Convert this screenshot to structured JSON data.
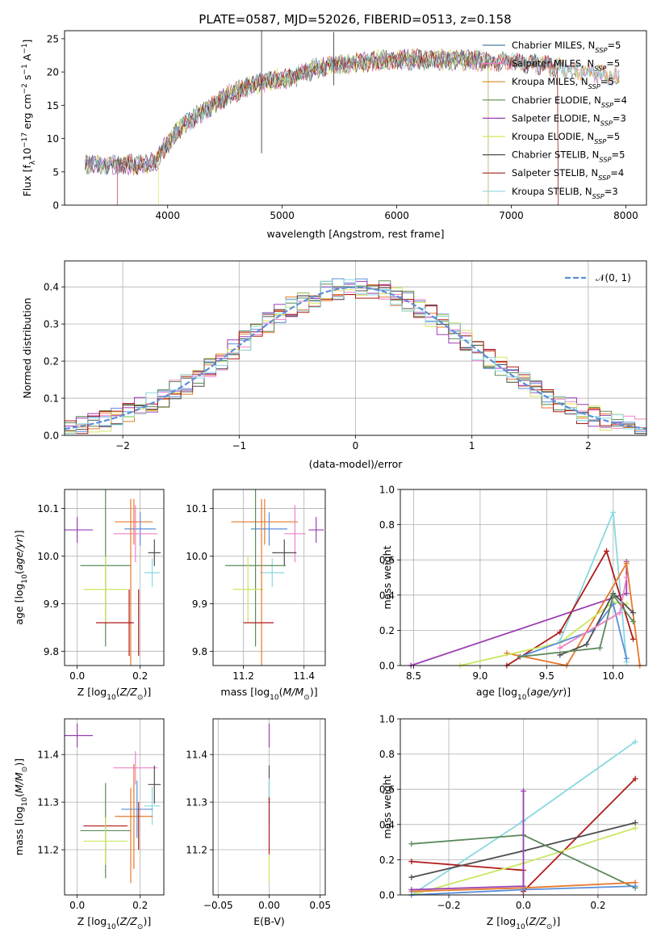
{
  "title": "PLATE=0587, MJD=52026, FIBERID=0513, z=0.158",
  "colors": {
    "Chabrier MILES": "#4a7fa0",
    "Salpeter MILES": "#f37ac4",
    "Kroupa MILES": "#d88a1b",
    "Chabrier ELODIE": "#5c8a52",
    "Salpeter ELODIE": "#9b3fb3",
    "Kroupa ELODIE": "#d8e35b",
    "Chabrier STELIB": "#4f4f4f",
    "Salpeter STELIB": "#a51d1d",
    "Kroupa STELIB": "#8fd8de",
    "blue": "#5b8fd8",
    "orange": "#e8782a",
    "green": "#5c8a5c",
    "purple": "#9b3fb3",
    "pink": "#f080c8",
    "yellowgreen": "#c8e860",
    "grey": "#4f4f4f",
    "red": "#b01a1a",
    "cyan": "#88d8e0"
  },
  "chart_data": [
    {
      "type": "line",
      "title": "PLATE=0587, MJD=52026, FIBERID=0513, z=0.158",
      "xlabel": "wavelength [Angstrom, rest frame]",
      "ylabel": "Flux [f_λ 10^-17 erg cm^-2 s^-1 A^-1]",
      "xlim": [
        3100,
        8180
      ],
      "ylim": [
        0,
        26.2
      ],
      "xticks": [
        "4000",
        "5000",
        "6000",
        "7000",
        "8000"
      ],
      "yticks": [
        "0",
        "5",
        "10",
        "15",
        "20",
        "25"
      ],
      "legend_position": "right",
      "legend": [
        {
          "name": "Chabrier MILES",
          "nssp": "5"
        },
        {
          "name": "Salpeter MILES",
          "nssp": "5"
        },
        {
          "name": "Kroupa MILES",
          "nssp": "5"
        },
        {
          "name": "Chabrier ELODIE",
          "nssp": "4"
        },
        {
          "name": "Salpeter ELODIE",
          "nssp": "3"
        },
        {
          "name": "Kroupa ELODIE",
          "nssp": "5"
        },
        {
          "name": "Chabrier STELIB",
          "nssp": "5"
        },
        {
          "name": "Salpeter STELIB",
          "nssp": "4"
        },
        {
          "name": "Kroupa STELIB",
          "nssp": "3"
        }
      ],
      "continuum_knots": [
        [
          3280,
          6.2
        ],
        [
          3500,
          6.0
        ],
        [
          3700,
          6.1
        ],
        [
          3900,
          6.4
        ],
        [
          3940,
          7.8
        ],
        [
          4100,
          11.5
        ],
        [
          4300,
          14.0
        ],
        [
          4500,
          16.2
        ],
        [
          4700,
          17.8
        ],
        [
          4900,
          18.8
        ],
        [
          5100,
          19.2
        ],
        [
          5300,
          20.6
        ],
        [
          5500,
          21.2
        ],
        [
          5800,
          21.6
        ],
        [
          6000,
          21.9
        ],
        [
          6300,
          21.8
        ],
        [
          6600,
          21.8
        ],
        [
          7000,
          21.6
        ],
        [
          7300,
          21.0
        ],
        [
          7600,
          20.2
        ],
        [
          7950,
          19.0
        ]
      ],
      "features": [
        {
          "x": 3560,
          "y0": 0,
          "note": "Salpeter STELIB lower cutoff"
        },
        {
          "x": 3920,
          "y0": 0,
          "note": "Kroupa ELODIE lower cutoff"
        },
        {
          "x": 4820,
          "y0": 8,
          "y1": 26,
          "note": "spike"
        },
        {
          "x": 6800,
          "y0": 0,
          "note": "ELODIE upper cutoff"
        },
        {
          "x": 7410,
          "y0": 0,
          "note": "STELIB upper cutoff"
        }
      ]
    },
    {
      "type": "line",
      "xlabel": "(data-model)/error",
      "ylabel": "Normed distribution",
      "xlim": [
        -2.5,
        2.5
      ],
      "ylim": [
        0,
        0.47
      ],
      "xticks": [
        "−2",
        "−1",
        "0",
        "1",
        "2"
      ],
      "yticks": [
        "0.0",
        "0.1",
        "0.2",
        "0.3",
        "0.4"
      ],
      "legend_position": "top-right",
      "legend": "𝒩(0, 1)",
      "series": [
        {
          "name": "𝒩(0, 1)",
          "style": "dashed",
          "function": "gaussian(0,1)"
        }
      ],
      "histograms": "step histograms of residuals for 9 model fits, bin width 0.1, following the gaussian"
    },
    {
      "type": "scatter",
      "xlabel": "Z [log10(Z/Z⊙)]",
      "ylabel": "age  [log10(age/yr)]",
      "xlim": [
        -0.04,
        0.275
      ],
      "ylim": [
        9.77,
        10.14
      ],
      "xticks": [
        "0.0",
        "0.2"
      ],
      "yticks": [
        "9.8",
        "9.9",
        "10.0",
        "10.1"
      ],
      "points": [
        {
          "c": "purple",
          "x": 0.0,
          "xe": 0.05,
          "y": 10.055,
          "ye": 0.027
        },
        {
          "c": "orange",
          "x": 0.18,
          "xe": 0.06,
          "y": 10.072,
          "ye": 0.048
        },
        {
          "c": "blue",
          "x": 0.2,
          "xe": 0.05,
          "y": 10.057,
          "ye": 0.035
        },
        {
          "c": "pink",
          "x": 0.185,
          "xe": 0.07,
          "y": 10.047,
          "ye": 0.06
        },
        {
          "c": "grey",
          "x": 0.245,
          "xe": 0.02,
          "y": 10.007,
          "ye": 0.028
        },
        {
          "c": "cyan",
          "x": 0.238,
          "xe": 0.025,
          "y": 9.965,
          "ye": 0.03
        },
        {
          "c": "green",
          "x": 0.09,
          "xe": 0.08,
          "y": 9.98,
          "ye": 0.17
        },
        {
          "c": "yellowgreen",
          "x": 0.09,
          "xe": 0.07,
          "y": 9.93,
          "ye": 0.07
        },
        {
          "c": "orange",
          "x": 0.17,
          "xe": 0.0,
          "y": 9.85,
          "ye": 0.27
        },
        {
          "c": "red",
          "x": 0.165,
          "xe": 0.0,
          "y": 9.86,
          "ye": 0.07
        },
        {
          "c": "red",
          "x": 0.12,
          "xe": 0.06,
          "y": 9.86,
          "ye": 0.0
        },
        {
          "c": "red",
          "x": 0.195,
          "xe": 0.0,
          "y": 9.86,
          "ye": 0.07
        }
      ]
    },
    {
      "type": "scatter",
      "xlabel": "mass [log10(M/M⊙)]",
      "ylabel": "",
      "xlim": [
        11.1,
        11.47
      ],
      "ylim": [
        9.77,
        10.14
      ],
      "xticks": [
        "11.2",
        "11.4"
      ],
      "yticks": [
        "9.8",
        "9.9",
        "10.0",
        "10.1"
      ],
      "points": [
        {
          "c": "purple",
          "x": 11.44,
          "xe": 0.025,
          "y": 10.055,
          "ye": 0.027
        },
        {
          "c": "orange",
          "x": 11.27,
          "xe": 0.11,
          "y": 10.072,
          "ye": 0.048
        },
        {
          "c": "blue",
          "x": 11.285,
          "xe": 0.06,
          "y": 10.057,
          "ye": 0.035
        },
        {
          "c": "pink",
          "x": 11.37,
          "xe": 0.035,
          "y": 10.047,
          "ye": 0.06
        },
        {
          "c": "grey",
          "x": 11.335,
          "xe": 0.04,
          "y": 10.007,
          "ye": 0.028
        },
        {
          "c": "cyan",
          "x": 11.295,
          "xe": 0.04,
          "y": 9.965,
          "ye": 0.03
        },
        {
          "c": "green",
          "x": 11.24,
          "xe": 0.1,
          "y": 9.98,
          "ye": 0.17
        },
        {
          "c": "yellowgreen",
          "x": 11.215,
          "xe": 0.05,
          "y": 9.93,
          "ye": 0.07
        },
        {
          "c": "orange",
          "x": 11.26,
          "xe": 0.0,
          "y": 9.85,
          "ye": 0.27
        },
        {
          "c": "red",
          "x": 11.25,
          "xe": 0.05,
          "y": 9.86,
          "ye": 0.0
        }
      ]
    },
    {
      "type": "line",
      "xlabel": "age  [log10(age/yr)]",
      "ylabel": "mass weight",
      "xlim": [
        8.4,
        10.25
      ],
      "ylim": [
        0,
        1.0
      ],
      "xticks": [
        "8.5",
        "9.0",
        "9.5",
        "10.0"
      ],
      "yticks": [
        "0.0",
        "0.2",
        "0.4",
        "0.6",
        "0.8",
        "1.0"
      ],
      "series": [
        {
          "c": "purple",
          "x": [
            8.48,
            10.1,
            10.1
          ],
          "y": [
            0.0,
            0.41,
            0.59
          ]
        },
        {
          "c": "cyan",
          "x": [
            9.6,
            10.0,
            10.1
          ],
          "y": [
            0.14,
            0.87,
            0.02
          ]
        },
        {
          "c": "red",
          "x": [
            9.2,
            9.6,
            9.95,
            10.15
          ],
          "y": [
            0.0,
            0.19,
            0.65,
            0.15
          ]
        },
        {
          "c": "orange",
          "x": [
            9.2,
            9.65,
            10.1,
            10.2
          ],
          "y": [
            0.07,
            0.0,
            0.58,
            0.0
          ]
        },
        {
          "c": "yellowgreen",
          "x": [
            8.85,
            9.6,
            10.0,
            10.1
          ],
          "y": [
            0.0,
            0.13,
            0.36,
            0.35
          ]
        },
        {
          "c": "blue",
          "x": [
            9.3,
            9.85,
            10.0,
            10.1
          ],
          "y": [
            0.05,
            0.2,
            0.35,
            0.04
          ]
        },
        {
          "c": "grey",
          "x": [
            9.6,
            9.8,
            10.0,
            10.15
          ],
          "y": [
            0.06,
            0.12,
            0.41,
            0.3
          ]
        },
        {
          "c": "green",
          "x": [
            9.3,
            9.9,
            10.0,
            10.15
          ],
          "y": [
            0.05,
            0.1,
            0.4,
            0.25
          ]
        },
        {
          "c": "pink",
          "x": [
            9.6,
            10.05,
            10.1
          ],
          "y": [
            0.1,
            0.3,
            0.5
          ]
        }
      ]
    },
    {
      "type": "scatter",
      "xlabel": "Z [log10(Z/Z⊙)]",
      "ylabel": "mass [log10(M/M⊙)]",
      "xlim": [
        -0.04,
        0.275
      ],
      "ylim": [
        11.105,
        11.475
      ],
      "xticks": [
        "0.0",
        "0.2"
      ],
      "yticks": [
        "11.2",
        "11.3",
        "11.4"
      ],
      "points": [
        {
          "c": "purple",
          "x": 0.0,
          "xe": 0.05,
          "y": 11.44,
          "ye": 0.025
        },
        {
          "c": "pink",
          "x": 0.185,
          "xe": 0.07,
          "y": 11.372,
          "ye": 0.035
        },
        {
          "c": "grey",
          "x": 0.245,
          "xe": 0.02,
          "y": 11.337,
          "ye": 0.04
        },
        {
          "c": "cyan",
          "x": 0.238,
          "xe": 0.025,
          "y": 11.292,
          "ye": 0.04
        },
        {
          "c": "orange",
          "x": 0.18,
          "xe": 0.06,
          "y": 11.27,
          "ye": 0.11
        },
        {
          "c": "blue",
          "x": 0.19,
          "xe": 0.05,
          "y": 11.285,
          "ye": 0.06
        },
        {
          "c": "green",
          "x": 0.09,
          "xe": 0.08,
          "y": 11.24,
          "ye": 0.1
        },
        {
          "c": "red",
          "x": 0.09,
          "xe": 0.07,
          "y": 11.25,
          "ye": 0.0
        },
        {
          "c": "red",
          "x": 0.195,
          "xe": 0.0,
          "y": 11.25,
          "ye": 0.05
        },
        {
          "c": "yellowgreen",
          "x": 0.09,
          "xe": 0.07,
          "y": 11.218,
          "ye": 0.05
        },
        {
          "c": "orange",
          "x": 0.17,
          "xe": 0.0,
          "y": 11.23,
          "ye": 0.1
        }
      ]
    },
    {
      "type": "scatter",
      "xlabel": "E(B-V)",
      "ylabel": "",
      "xlim": [
        -0.055,
        0.055
      ],
      "ylim": [
        11.105,
        11.475
      ],
      "xticks": [
        "−0.05",
        "0.00",
        "0.05"
      ],
      "yticks": [
        "11.2",
        "11.3",
        "11.4"
      ],
      "points": [
        {
          "c": "purple",
          "x": 0.0,
          "xe": 0.0,
          "y": 11.44,
          "ye": 0.025
        },
        {
          "c": "grey",
          "x": 0.0,
          "xe": 0.0,
          "y": 11.337,
          "ye": 0.04
        },
        {
          "c": "cyan",
          "x": 0.0,
          "xe": 0.0,
          "y": 11.3,
          "ye": 0.05
        },
        {
          "c": "red",
          "x": 0.0,
          "xe": 0.0,
          "y": 11.25,
          "ye": 0.06
        },
        {
          "c": "yellowgreen",
          "x": 0.0,
          "xe": 0.0,
          "y": 11.16,
          "ye": 0.03
        }
      ]
    },
    {
      "type": "line",
      "xlabel": "Z [log10(Z/Z⊙)]",
      "ylabel": "mass weight",
      "xlim": [
        -0.33,
        0.33
      ],
      "ylim": [
        0,
        1.0
      ],
      "xticks": [
        "−0.2",
        "0.0",
        "0.2"
      ],
      "yticks": [
        "0.0",
        "0.2",
        "0.4",
        "0.6",
        "0.8",
        "1.0"
      ],
      "series": [
        {
          "c": "cyan",
          "x": [
            -0.3,
            0.0,
            0.3
          ],
          "y": [
            0.0,
            0.42,
            0.87
          ]
        },
        {
          "c": "red",
          "x": [
            -0.3,
            0.0,
            0.0,
            0.3
          ],
          "y": [
            0.19,
            0.14,
            0.02,
            0.66
          ]
        },
        {
          "c": "grey",
          "x": [
            -0.3,
            0.0,
            0.3
          ],
          "y": [
            0.1,
            0.25,
            0.41
          ]
        },
        {
          "c": "yellowgreen",
          "x": [
            -0.3,
            0.0,
            0.3
          ],
          "y": [
            0.0,
            0.18,
            0.38
          ]
        },
        {
          "c": "green",
          "x": [
            -0.3,
            0.0,
            0.3
          ],
          "y": [
            0.29,
            0.34,
            0.04
          ]
        },
        {
          "c": "orange",
          "x": [
            -0.3,
            0.0,
            0.3
          ],
          "y": [
            0.02,
            0.04,
            0.07
          ]
        },
        {
          "c": "purple",
          "x": [
            -0.3,
            0.0,
            0.0
          ],
          "y": [
            0.03,
            0.05,
            0.59
          ]
        },
        {
          "c": "blue",
          "x": [
            -0.3,
            0.0,
            0.3
          ],
          "y": [
            0.0,
            0.03,
            0.05
          ]
        }
      ]
    }
  ]
}
